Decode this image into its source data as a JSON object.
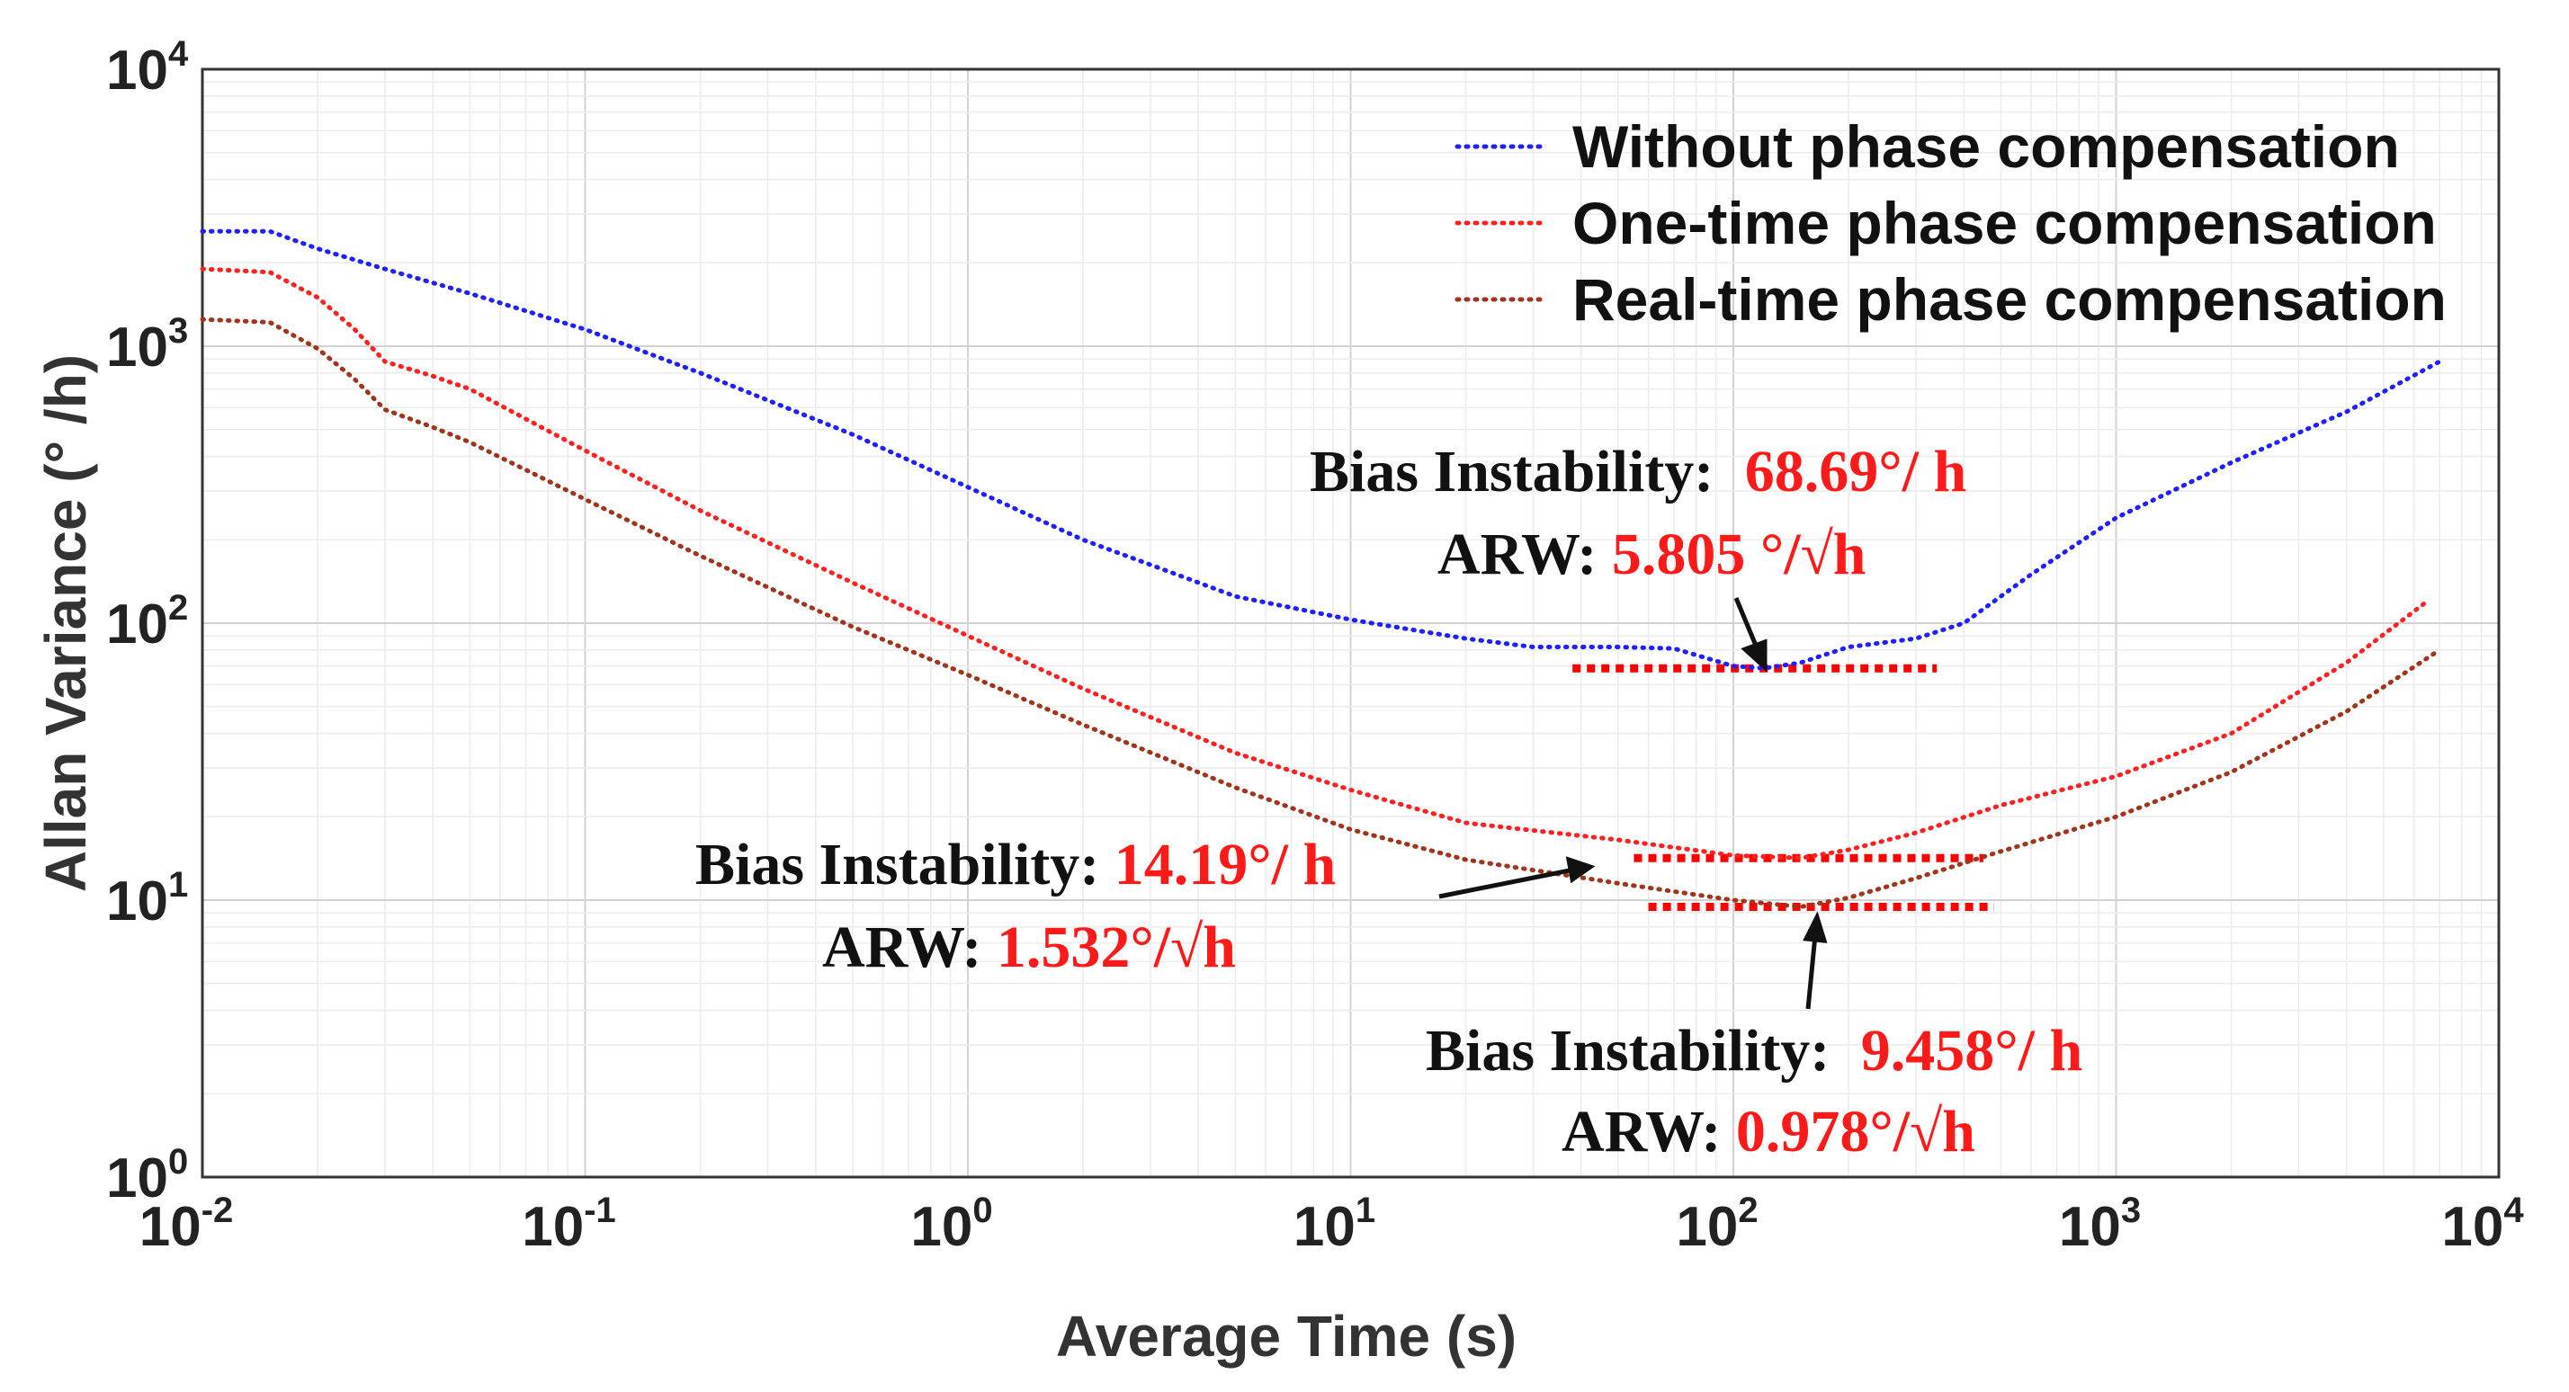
{
  "chart_data": {
    "type": "line",
    "title": "",
    "xlabel": "Average Time (s)",
    "ylabel": "Allan Variance (° /h)",
    "xscale": "log",
    "yscale": "log",
    "xlim": [
      0.01,
      10000
    ],
    "ylim": [
      1,
      10000
    ],
    "grid": true,
    "legend_position": "top-right",
    "x_ticks": [
      {
        "base": "10",
        "exp": "-2"
      },
      {
        "base": "10",
        "exp": "-1"
      },
      {
        "base": "10",
        "exp": "0"
      },
      {
        "base": "10",
        "exp": "1"
      },
      {
        "base": "10",
        "exp": "2"
      },
      {
        "base": "10",
        "exp": "3"
      },
      {
        "base": "10",
        "exp": "4"
      }
    ],
    "y_ticks": [
      {
        "base": "10",
        "exp": "0"
      },
      {
        "base": "10",
        "exp": "1"
      },
      {
        "base": "10",
        "exp": "2"
      },
      {
        "base": "10",
        "exp": "3"
      },
      {
        "base": "10",
        "exp": "4"
      }
    ],
    "series": [
      {
        "name": "Without phase compensation",
        "color": "#1f1fff",
        "points": [
          [
            0.01,
            2600
          ],
          [
            0.015,
            2600
          ],
          [
            0.02,
            2250
          ],
          [
            0.03,
            1900
          ],
          [
            0.05,
            1550
          ],
          [
            0.1,
            1150
          ],
          [
            0.2,
            800
          ],
          [
            0.5,
            480
          ],
          [
            1,
            310
          ],
          [
            2,
            200
          ],
          [
            5,
            125
          ],
          [
            10,
            103
          ],
          [
            20,
            88
          ],
          [
            30,
            82
          ],
          [
            50,
            82
          ],
          [
            70,
            81
          ],
          [
            100,
            70
          ],
          [
            120,
            68.7
          ],
          [
            150,
            72
          ],
          [
            200,
            82
          ],
          [
            300,
            88
          ],
          [
            400,
            100
          ],
          [
            600,
            150
          ],
          [
            1000,
            240
          ],
          [
            2000,
            380
          ],
          [
            4000,
            580
          ],
          [
            7000,
            880
          ]
        ]
      },
      {
        "name": "One-time phase compensation",
        "color": "#ff2020",
        "points": [
          [
            0.01,
            1900
          ],
          [
            0.015,
            1850
          ],
          [
            0.02,
            1500
          ],
          [
            0.025,
            1150
          ],
          [
            0.03,
            880
          ],
          [
            0.04,
            780
          ],
          [
            0.05,
            700
          ],
          [
            0.1,
            420
          ],
          [
            0.2,
            255
          ],
          [
            0.5,
            140
          ],
          [
            1,
            90
          ],
          [
            2,
            58
          ],
          [
            5,
            34
          ],
          [
            10,
            25
          ],
          [
            20,
            19
          ],
          [
            50,
            16.5
          ],
          [
            100,
            14.5
          ],
          [
            150,
            14.19
          ],
          [
            200,
            15.2
          ],
          [
            300,
            17.5
          ],
          [
            500,
            22
          ],
          [
            1000,
            28
          ],
          [
            2000,
            40
          ],
          [
            4000,
            72
          ],
          [
            6500,
            120
          ]
        ]
      },
      {
        "name": "Real-time phase compensation",
        "color": "#a0341c",
        "points": [
          [
            0.01,
            1250
          ],
          [
            0.015,
            1220
          ],
          [
            0.02,
            980
          ],
          [
            0.025,
            760
          ],
          [
            0.03,
            590
          ],
          [
            0.04,
            510
          ],
          [
            0.05,
            450
          ],
          [
            0.1,
            280
          ],
          [
            0.2,
            175
          ],
          [
            0.5,
            97
          ],
          [
            1,
            65
          ],
          [
            2,
            43
          ],
          [
            5,
            25.5
          ],
          [
            10,
            18
          ],
          [
            20,
            14
          ],
          [
            50,
            11.5
          ],
          [
            100,
            10
          ],
          [
            150,
            9.458
          ],
          [
            200,
            10.2
          ],
          [
            300,
            12
          ],
          [
            500,
            15
          ],
          [
            1000,
            20
          ],
          [
            2000,
            29
          ],
          [
            4000,
            48
          ],
          [
            7000,
            80
          ]
        ]
      }
    ],
    "reference_lines": [
      {
        "series": "Without phase compensation",
        "y": 68.69,
        "x_from": 38,
        "x_to": 340
      },
      {
        "series": "One-time phase compensation",
        "y": 14.19,
        "x_from": 55,
        "x_to": 450
      },
      {
        "series": "Real-time phase compensation",
        "y": 9.458,
        "x_from": 60,
        "x_to": 480
      }
    ],
    "annotations": [
      {
        "label": "Bias Instability:",
        "value": "68.69°/ h"
      },
      {
        "label": "ARW:",
        "value": "5.805 °/√h"
      },
      {
        "label": "Bias Instability:",
        "value": "14.19°/ h"
      },
      {
        "label": "ARW:",
        "value": "1.532°/√h"
      },
      {
        "label": "Bias Instability:",
        "value": "9.458°/ h"
      },
      {
        "label": "ARW:",
        "value": "0.978°/√h"
      }
    ]
  }
}
